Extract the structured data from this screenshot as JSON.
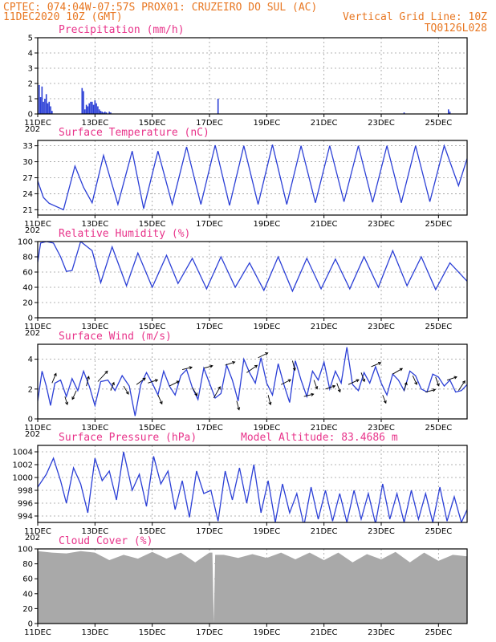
{
  "header": {
    "line1_left": "CPTEC:   074:04W-07:57S   PROX01: CRUZEIRO DO SUL (AC)",
    "line2_left": "11DEC2020 10Z (GMT)",
    "line2_right": "Vertical Grid Line: 10Z",
    "line3_right": "TQ0126L028"
  },
  "colors": {
    "header": "#e87722",
    "title": "#e8338a",
    "series": "#2b3fd6",
    "cloud": "#a9a9a9",
    "arrow": "#000000"
  },
  "x_ticks": [
    "11DEC",
    "13DEC",
    "15DEC",
    "17DEC",
    "19DEC",
    "21DEC",
    "23DEC",
    "25DEC"
  ],
  "x_tick_days": [
    0,
    2,
    4,
    6,
    8,
    10,
    12,
    14
  ],
  "x_subscript": "202",
  "days_span": 15,
  "chart_data": [
    {
      "type": "bar",
      "title": "Precipitation (mm/h)",
      "ylim": [
        0,
        5
      ],
      "yticks": [
        "0",
        "1",
        "2",
        "3",
        "4",
        "5"
      ],
      "ytick_values": [
        0,
        1,
        2,
        3,
        4,
        5
      ],
      "grid": true,
      "x": [
        0.05,
        0.1,
        0.15,
        0.2,
        0.25,
        0.3,
        0.35,
        0.4,
        0.45,
        0.5,
        1.55,
        1.6,
        1.65,
        1.7,
        1.75,
        1.8,
        1.85,
        1.9,
        1.95,
        2.0,
        2.05,
        2.1,
        2.15,
        2.2,
        2.25,
        2.3,
        2.35,
        2.4,
        2.5,
        2.55,
        6.3,
        12.8,
        14.35,
        14.4
      ],
      "values": [
        1.9,
        1.1,
        1.8,
        0.8,
        1.0,
        1.3,
        0.7,
        0.8,
        0.5,
        0.2,
        1.7,
        1.5,
        0.3,
        0.6,
        0.5,
        0.7,
        0.8,
        0.8,
        0.6,
        0.9,
        0.7,
        0.5,
        0.3,
        0.2,
        0.15,
        0.1,
        0.15,
        0.1,
        0.15,
        0.1,
        1.0,
        0.1,
        0.3,
        0.15
      ]
    },
    {
      "type": "line",
      "title": "Surface Temperature (nC)",
      "ylim": [
        20,
        34
      ],
      "yticks": [
        "21",
        "24",
        "27",
        "30",
        "33"
      ],
      "ytick_values": [
        21,
        24,
        27,
        30,
        33
      ],
      "grid": true,
      "x": [
        0.0,
        0.2,
        0.4,
        0.9,
        1.3,
        1.6,
        1.9,
        2.3,
        2.8,
        3.3,
        3.7,
        4.2,
        4.7,
        5.2,
        5.7,
        6.2,
        6.7,
        7.2,
        7.7,
        8.2,
        8.7,
        9.2,
        9.7,
        10.2,
        10.7,
        11.2,
        11.7,
        12.2,
        12.7,
        13.2,
        13.7,
        14.2,
        14.7,
        15.0
      ],
      "values": [
        26.4,
        23.3,
        22.2,
        21.0,
        29.2,
        25.2,
        22.3,
        31.2,
        22.0,
        32.0,
        21.2,
        32.0,
        22.0,
        32.8,
        22.0,
        33.1,
        21.8,
        33.0,
        22.0,
        33.2,
        22.0,
        33.0,
        22.3,
        33.0,
        22.5,
        33.0,
        22.4,
        33.0,
        22.3,
        33.0,
        22.5,
        33.0,
        25.5,
        30.6
      ]
    },
    {
      "type": "line",
      "title": "Relative Humidity (%)",
      "ylim": [
        0,
        100
      ],
      "yticks": [
        "0",
        "20",
        "40",
        "60",
        "80",
        "100"
      ],
      "ytick_values": [
        0,
        20,
        40,
        60,
        80,
        100
      ],
      "grid": true,
      "x": [
        0.0,
        0.1,
        0.3,
        0.55,
        0.8,
        1.0,
        1.2,
        1.5,
        1.9,
        2.2,
        2.6,
        3.1,
        3.5,
        4.0,
        4.5,
        4.9,
        5.4,
        5.9,
        6.4,
        6.9,
        7.4,
        7.9,
        8.4,
        8.9,
        9.4,
        9.9,
        10.4,
        10.9,
        11.4,
        11.9,
        12.4,
        12.9,
        13.4,
        13.9,
        14.4,
        15.0
      ],
      "values": [
        73,
        98,
        100,
        98,
        80,
        61,
        62,
        100,
        88,
        46,
        93,
        42,
        85,
        40,
        82,
        45,
        78,
        38,
        80,
        40,
        72,
        36,
        80,
        35,
        78,
        38,
        77,
        38,
        80,
        40,
        88,
        42,
        80,
        37,
        72,
        48
      ]
    },
    {
      "type": "line",
      "title": "Surface Wind (m/s)",
      "ylim": [
        0,
        5
      ],
      "yticks": [
        "0",
        "2",
        "4"
      ],
      "ytick_values": [
        0,
        2,
        4
      ],
      "grid": true,
      "x": [
        0.0,
        0.15,
        0.3,
        0.45,
        0.6,
        0.8,
        1.0,
        1.2,
        1.4,
        1.6,
        1.8,
        2.0,
        2.2,
        2.45,
        2.7,
        2.95,
        3.2,
        3.4,
        3.6,
        3.8,
        4.0,
        4.2,
        4.4,
        4.6,
        4.8,
        5.0,
        5.2,
        5.4,
        5.6,
        5.8,
        6.0,
        6.2,
        6.4,
        6.6,
        6.8,
        7.0,
        7.2,
        7.4,
        7.6,
        7.8,
        8.0,
        8.2,
        8.4,
        8.6,
        8.8,
        9.0,
        9.2,
        9.4,
        9.6,
        9.8,
        10.0,
        10.2,
        10.4,
        10.6,
        10.8,
        11.0,
        11.2,
        11.4,
        11.6,
        11.8,
        12.0,
        12.2,
        12.4,
        12.6,
        12.8,
        13.0,
        13.2,
        13.4,
        13.6,
        13.8,
        14.0,
        14.2,
        14.4,
        14.6,
        14.8,
        15.0
      ],
      "values": [
        1.2,
        3.2,
        2.2,
        0.9,
        2.4,
        2.6,
        1.5,
        2.7,
        1.9,
        3.2,
        2.2,
        0.9,
        2.5,
        2.6,
        1.9,
        2.9,
        2.2,
        0.2,
        2.3,
        3.1,
        2.4,
        1.6,
        3.2,
        2.2,
        1.6,
        2.9,
        3.3,
        2.1,
        1.3,
        3.4,
        2.4,
        1.4,
        1.7,
        3.6,
        2.6,
        1.2,
        4.0,
        3.1,
        2.4,
        4.1,
        2.4,
        1.6,
        3.7,
        2.3,
        1.1,
        3.9,
        2.6,
        1.5,
        3.2,
        2.6,
        3.8,
        2.0,
        3.2,
        2.4,
        4.8,
        2.3,
        1.9,
        3.1,
        2.4,
        3.5,
        2.4,
        1.6,
        3.0,
        2.6,
        1.9,
        3.2,
        2.9,
        2.0,
        1.8,
        3.0,
        2.8,
        2.2,
        2.6,
        1.8,
        1.9,
        2.3
      ],
      "arrows": [
        {
          "x": 0.5,
          "dx": 5,
          "dy": -12
        },
        {
          "x": 0.95,
          "dx": 3,
          "dy": 10
        },
        {
          "x": 1.35,
          "dx": -5,
          "dy": 11
        },
        {
          "x": 1.7,
          "dx": 3,
          "dy": -12
        },
        {
          "x": 2.1,
          "dx": 12,
          "dy": -13
        },
        {
          "x": 2.55,
          "dx": 4,
          "dy": -10
        },
        {
          "x": 3.0,
          "dx": 6,
          "dy": 10
        },
        {
          "x": 3.45,
          "dx": 11,
          "dy": -8
        },
        {
          "x": 3.85,
          "dx": 12,
          "dy": -4
        },
        {
          "x": 4.2,
          "dx": 5,
          "dy": 11
        },
        {
          "x": 4.6,
          "dx": 12,
          "dy": -6
        },
        {
          "x": 5.05,
          "dx": 12,
          "dy": -3
        },
        {
          "x": 5.4,
          "dx": 6,
          "dy": 10
        },
        {
          "x": 5.8,
          "dx": 11,
          "dy": -3
        },
        {
          "x": 6.15,
          "dx": 8,
          "dy": -14
        },
        {
          "x": 6.55,
          "dx": 12,
          "dy": -4
        },
        {
          "x": 6.95,
          "dx": 3,
          "dy": 11
        },
        {
          "x": 7.3,
          "dx": 13,
          "dy": -9
        },
        {
          "x": 7.7,
          "dx": 12,
          "dy": -6
        },
        {
          "x": 8.05,
          "dx": 3,
          "dy": 12
        },
        {
          "x": 8.5,
          "dx": 12,
          "dy": -6
        },
        {
          "x": 8.9,
          "dx": 3,
          "dy": 12
        },
        {
          "x": 9.3,
          "dx": 12,
          "dy": -3
        },
        {
          "x": 9.65,
          "dx": 4,
          "dy": 11
        },
        {
          "x": 10.05,
          "dx": 12,
          "dy": -4
        },
        {
          "x": 10.45,
          "dx": 4,
          "dy": 11
        },
        {
          "x": 10.85,
          "dx": 13,
          "dy": -6
        },
        {
          "x": 11.3,
          "dx": 4,
          "dy": 11
        },
        {
          "x": 11.65,
          "dx": 12,
          "dy": -5
        },
        {
          "x": 12.05,
          "dx": 4,
          "dy": 10
        },
        {
          "x": 12.4,
          "dx": 12,
          "dy": -7
        },
        {
          "x": 12.8,
          "dx": 3,
          "dy": -10
        },
        {
          "x": 13.1,
          "dx": 5,
          "dy": 11
        },
        {
          "x": 13.55,
          "dx": 12,
          "dy": -3
        },
        {
          "x": 13.9,
          "dx": 4,
          "dy": 11
        },
        {
          "x": 14.3,
          "dx": 12,
          "dy": -4
        },
        {
          "x": 14.7,
          "dx": 8,
          "dy": -12
        }
      ]
    },
    {
      "type": "line",
      "title": "Surface Pressure (hPa)",
      "annotation": "Model Altitude: 83.4686 m",
      "ylim": [
        993,
        1005
      ],
      "yticks": [
        "994",
        "996",
        "998",
        "1000",
        "1002",
        "1004"
      ],
      "ytick_values": [
        994,
        996,
        998,
        1000,
        1002,
        1004
      ],
      "grid": true,
      "x": [
        0.0,
        0.3,
        0.55,
        0.8,
        1.0,
        1.25,
        1.5,
        1.75,
        2.0,
        2.25,
        2.5,
        2.75,
        3.0,
        3.3,
        3.55,
        3.8,
        4.05,
        4.3,
        4.55,
        4.8,
        5.05,
        5.3,
        5.55,
        5.8,
        6.05,
        6.3,
        6.55,
        6.8,
        7.05,
        7.3,
        7.55,
        7.8,
        8.05,
        8.3,
        8.55,
        8.8,
        9.05,
        9.3,
        9.55,
        9.8,
        10.05,
        10.3,
        10.55,
        10.8,
        11.05,
        11.3,
        11.55,
        11.8,
        12.05,
        12.3,
        12.55,
        12.8,
        13.05,
        13.3,
        13.55,
        13.8,
        14.05,
        14.3,
        14.55,
        14.8,
        15.0
      ],
      "values": [
        998.5,
        1000.5,
        1003.0,
        999.5,
        996.0,
        1001.5,
        999.0,
        994.5,
        1003.0,
        999.5,
        1001.0,
        996.5,
        1004.0,
        998.0,
        1000.5,
        995.5,
        1003.3,
        999.0,
        1001.0,
        995.0,
        999.5,
        993.8,
        1001.0,
        997.5,
        998.0,
        993.2,
        1001.0,
        996.5,
        1001.5,
        996.0,
        1002.0,
        994.5,
        999.5,
        993.0,
        999.0,
        994.5,
        997.5,
        992.5,
        998.5,
        993.5,
        998.0,
        993.2,
        997.5,
        993.0,
        998.0,
        993.5,
        997.5,
        992.8,
        999.0,
        993.5,
        997.5,
        993.0,
        998.0,
        993.5,
        997.5,
        993.0,
        998.5,
        993.2,
        997.0,
        993.0,
        995.0
      ]
    },
    {
      "type": "area",
      "title": "Cloud Cover (%)",
      "ylim": [
        0,
        100
      ],
      "yticks": [
        "0",
        "20",
        "40",
        "60",
        "80",
        "100"
      ],
      "ytick_values": [
        0,
        20,
        40,
        60,
        80,
        100
      ],
      "grid": true,
      "x": [
        0.0,
        0.5,
        1.0,
        1.5,
        2.0,
        2.5,
        3.0,
        3.5,
        4.0,
        4.5,
        5.0,
        5.5,
        6.0,
        6.1,
        6.15,
        6.2,
        6.5,
        7.0,
        7.5,
        8.0,
        8.5,
        9.0,
        9.5,
        10.0,
        10.5,
        11.0,
        11.5,
        12.0,
        12.5,
        13.0,
        13.5,
        14.0,
        14.5,
        15.0
      ],
      "values": [
        97,
        95,
        94,
        97,
        95,
        85,
        92,
        87,
        96,
        87,
        95,
        82,
        95,
        95,
        1,
        92,
        92,
        88,
        93,
        88,
        95,
        86,
        95,
        85,
        95,
        82,
        93,
        86,
        96,
        82,
        95,
        84,
        92,
        90
      ]
    }
  ]
}
